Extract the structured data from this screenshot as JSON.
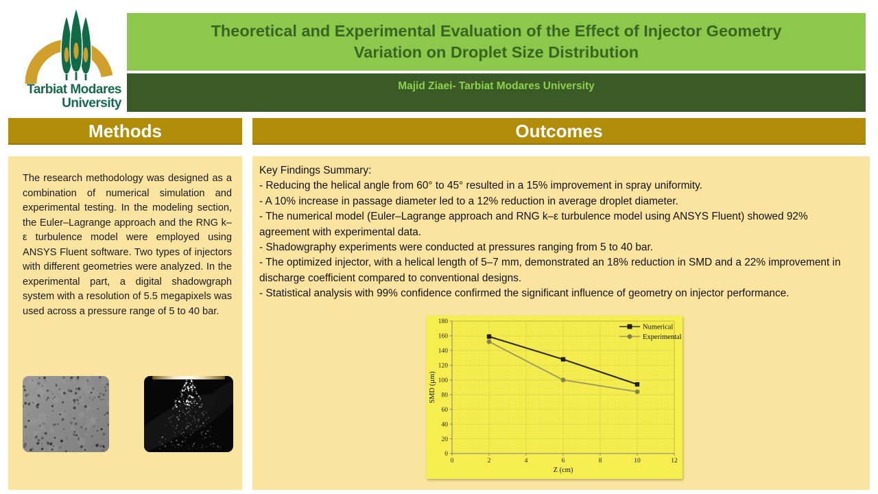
{
  "header": {
    "title": "Theoretical and Experimental Evaluation of the Effect of Injector Geometry\nVariation on Droplet Size Distribution",
    "author": "Majid Ziaei- Tarbiat Modares University",
    "logo_line1": "Tarbiat Modares",
    "logo_line2": "University"
  },
  "methods": {
    "heading": "Methods",
    "body": "The research methodology was designed as a combination of numerical simulation and experimental testing. In the modeling section, the Euler–Lagrange approach and the RNG k–ε turbulence model were employed using ANSYS Fluent software. Two types of injectors with different geometries were analyzed. In the experimental part, a digital shadowgraph system with a resolution of 5.5 megapixels was used across a pressure range of 5 to 40 bar.",
    "images": [
      "droplet-shadowgraph-photo",
      "spray-cone-photo"
    ]
  },
  "outcomes": {
    "heading": "Outcomes",
    "intro": "Key Findings Summary:",
    "bullets": [
      "- Reducing the helical angle from 60° to 45° resulted in a 15% improvement in spray uniformity.",
      "- A 10% increase in passage diameter led to a 12% reduction in average droplet diameter.",
      "- The numerical model (Euler–Lagrange approach and RNG k–ε turbulence model using ANSYS Fluent) showed 92% agreement with experimental data.",
      "- Shadowgraphy experiments were conducted at pressures ranging from 5 to 40 bar.",
      "- The optimized injector, with a helical length of 5–7 mm, demonstrated an 18% reduction in SMD and a 22% improvement in discharge coefficient compared to conventional designs.",
      "- Statistical analysis with 99% confidence confirmed the significant influence of geometry on injector performance."
    ]
  },
  "chart_data": {
    "type": "line",
    "title": "",
    "xlabel": "Z (cm)",
    "ylabel": "SMD (µm)",
    "xlim": [
      0,
      12
    ],
    "ylim": [
      0,
      180
    ],
    "xticks": [
      0,
      2,
      4,
      6,
      8,
      10,
      12
    ],
    "yticks": [
      0,
      20,
      40,
      60,
      80,
      100,
      120,
      140,
      160,
      180
    ],
    "grid": true,
    "legend_position": "top-right",
    "plot_bg": "#f6ee4f",
    "series": [
      {
        "name": "Numerical",
        "marker": "square",
        "color": "#211f12",
        "line_color": "#33301d",
        "x": [
          2,
          6,
          10
        ],
        "y": [
          159,
          128,
          94
        ]
      },
      {
        "name": "Experimental",
        "marker": "circle",
        "color": "#827e4b",
        "line_color": "#a29b5c",
        "x": [
          2,
          6,
          10
        ],
        "y": [
          152,
          100,
          84
        ]
      }
    ]
  },
  "colors": {
    "light_green": "#8cc84b",
    "dark_green": "#3a5a26",
    "title_text_green": "#38651f",
    "gold_header": "#b18d0a",
    "panel_tan": "#fbe3a0",
    "chart_yellow": "#f6ee4f",
    "logo_gold": "#d1a02c",
    "logo_green": "#0f6a45"
  }
}
